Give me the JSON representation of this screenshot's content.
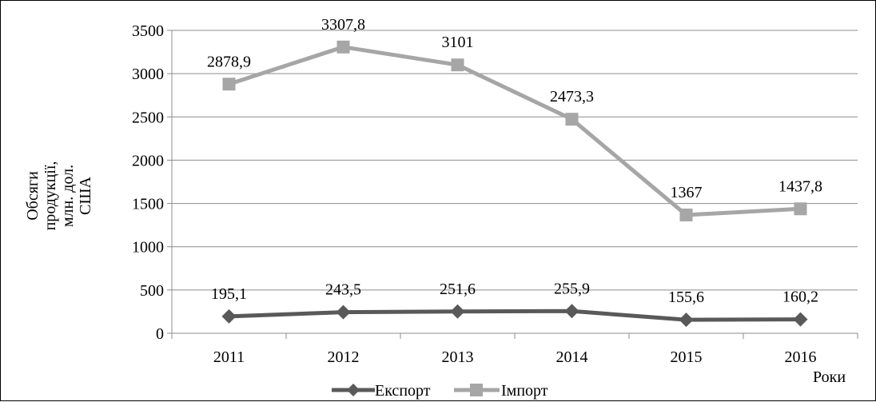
{
  "chart_data": {
    "type": "line",
    "categories": [
      "2011",
      "2012",
      "2013",
      "2014",
      "2015",
      "2016"
    ],
    "series": [
      {
        "name": "Експорт",
        "values": [
          195.1,
          243.5,
          251.6,
          255.9,
          155.6,
          160.2
        ],
        "labels": [
          "195,1",
          "243,5",
          "251,6",
          "255,9",
          "155,6",
          "160,2"
        ],
        "color": "#595959",
        "marker": "diamond"
      },
      {
        "name": "Імпорт",
        "values": [
          2878.9,
          3307.8,
          3101,
          2473.3,
          1367,
          1437.8
        ],
        "labels": [
          "2878,9",
          "3307,8",
          "3101",
          "2473,3",
          "1367",
          "1437,8"
        ],
        "color": "#A6A6A6",
        "marker": "square"
      }
    ],
    "ylabel_lines": [
      "Обсяги",
      "продукції,",
      "млн. дол.",
      "США"
    ],
    "xlabel": "Роки",
    "ylim": [
      0,
      3500
    ],
    "yticks": [
      "0",
      "500",
      "1000",
      "1500",
      "2000",
      "2500",
      "3000",
      "3500"
    ],
    "grid": "horizontal",
    "legend_position": "bottom"
  }
}
